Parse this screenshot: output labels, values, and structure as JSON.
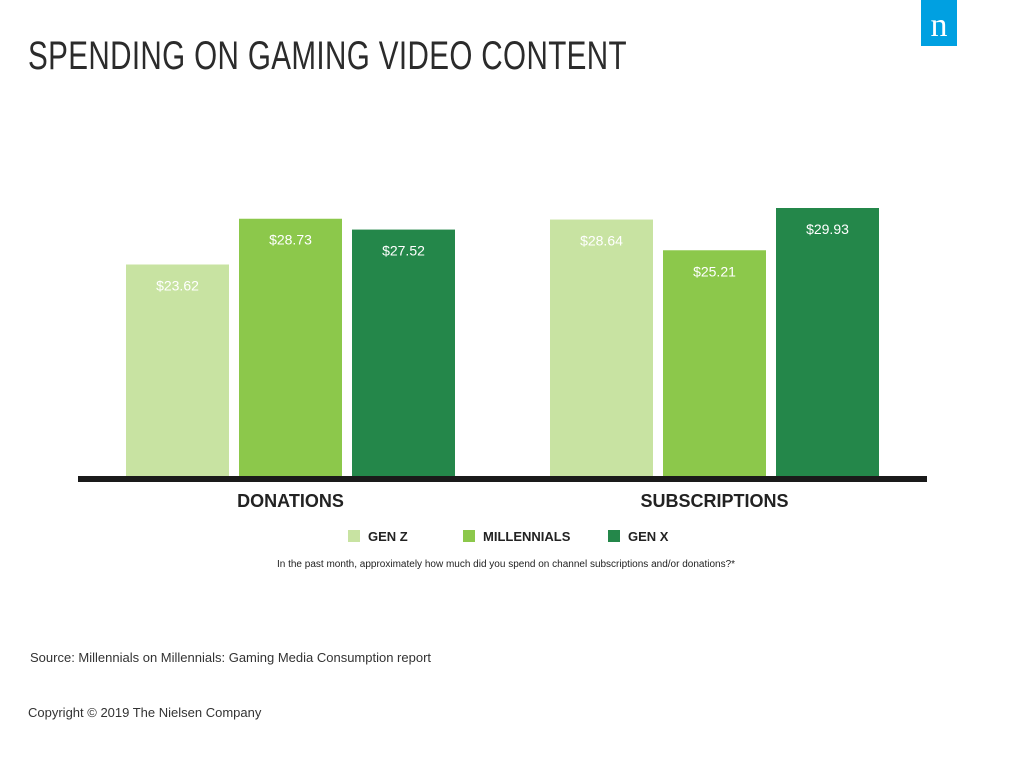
{
  "title": "SPENDING ON GAMING VIDEO CONTENT",
  "logo_letter": "n",
  "colors": {
    "gen_z": "#c8e3a2",
    "millennials": "#8cc84b",
    "gen_x": "#24874a",
    "baseline": "#1a1a1a",
    "logo": "#00a0e1"
  },
  "chart_data": {
    "type": "bar",
    "title": "SPENDING ON GAMING VIDEO CONTENT",
    "categories": [
      "DONATIONS",
      "SUBSCRIPTIONS"
    ],
    "series": [
      {
        "name": "GEN Z",
        "values": [
          23.62,
          28.64
        ],
        "labels": [
          "$23.62",
          "$28.64"
        ],
        "color": "#c8e3a2"
      },
      {
        "name": "MILLENNIALS",
        "values": [
          28.73,
          25.21
        ],
        "labels": [
          "$28.73",
          "$25.21"
        ],
        "color": "#8cc84b"
      },
      {
        "name": "GEN X",
        "values": [
          27.52,
          29.93
        ],
        "labels": [
          "$27.52",
          "$29.93"
        ],
        "color": "#24874a"
      }
    ],
    "ylim": [
      0,
      29.93
    ],
    "grid": false,
    "legend": "bottom"
  },
  "question": "In the past month, approximately how much did you spend on channel subscriptions and/or donations?*",
  "source": "Source: Millennials on Millennials: Gaming Media Consumption report",
  "copyright": "Copyright © 2019 The Nielsen Company"
}
